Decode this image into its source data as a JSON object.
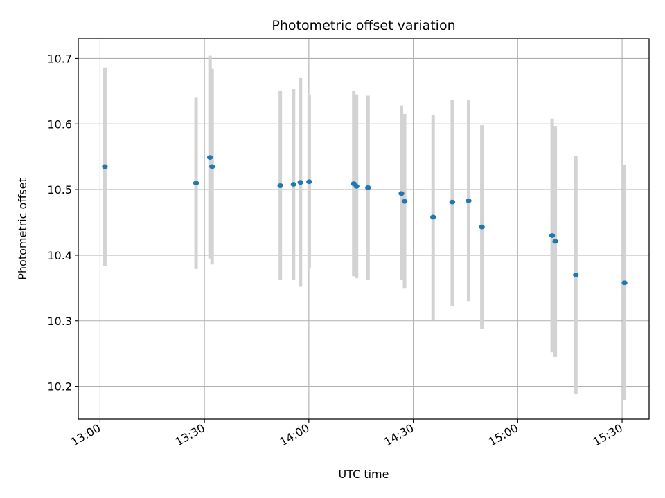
{
  "chart_data": {
    "type": "scatter",
    "title": "Photometric offset variation",
    "xlabel": "UTC time",
    "ylabel": "Photometric offset",
    "grid": true,
    "xlim": [
      "12:53:45",
      "15:37:45"
    ],
    "ylim": [
      10.15,
      10.73
    ],
    "x_ticks": [
      {
        "value": "13:00",
        "label": "13:00"
      },
      {
        "value": "13:30",
        "label": "13:30"
      },
      {
        "value": "14:00",
        "label": "14:00"
      },
      {
        "value": "14:30",
        "label": "14:30"
      },
      {
        "value": "15:00",
        "label": "15:00"
      },
      {
        "value": "15:30",
        "label": "15:30"
      }
    ],
    "y_ticks": [
      {
        "value": 10.2,
        "label": "10.2"
      },
      {
        "value": 10.3,
        "label": "10.3"
      },
      {
        "value": 10.4,
        "label": "10.4"
      },
      {
        "value": 10.5,
        "label": "10.5"
      },
      {
        "value": 10.6,
        "label": "10.6"
      },
      {
        "value": 10.7,
        "label": "10.7"
      }
    ],
    "point_color": "#1f77b4",
    "errorbar_color": "#d3d3d3",
    "points": [
      {
        "x": "13:01:24",
        "y": 10.535,
        "yerr_low": 10.383,
        "yerr_high": 10.686
      },
      {
        "x": "13:27:36",
        "y": 10.51,
        "yerr_low": 10.379,
        "yerr_high": 10.641
      },
      {
        "x": "13:31:36",
        "y": 10.549,
        "yerr_low": 10.395,
        "yerr_high": 10.704
      },
      {
        "x": "13:32:12",
        "y": 10.535,
        "yerr_low": 10.386,
        "yerr_high": 10.684
      },
      {
        "x": "13:51:48",
        "y": 10.506,
        "yerr_low": 10.362,
        "yerr_high": 10.651
      },
      {
        "x": "13:55:36",
        "y": 10.508,
        "yerr_low": 10.362,
        "yerr_high": 10.654
      },
      {
        "x": "13:57:36",
        "y": 10.511,
        "yerr_low": 10.352,
        "yerr_high": 10.67
      },
      {
        "x": "14:00:06",
        "y": 10.512,
        "yerr_low": 10.381,
        "yerr_high": 10.645
      },
      {
        "x": "14:12:54",
        "y": 10.509,
        "yerr_low": 10.368,
        "yerr_high": 10.65
      },
      {
        "x": "14:13:42",
        "y": 10.505,
        "yerr_low": 10.365,
        "yerr_high": 10.645
      },
      {
        "x": "14:17:00",
        "y": 10.503,
        "yerr_low": 10.362,
        "yerr_high": 10.643
      },
      {
        "x": "14:26:36",
        "y": 10.494,
        "yerr_low": 10.362,
        "yerr_high": 10.628
      },
      {
        "x": "14:27:30",
        "y": 10.482,
        "yerr_low": 10.349,
        "yerr_high": 10.615
      },
      {
        "x": "14:35:42",
        "y": 10.458,
        "yerr_low": 10.301,
        "yerr_high": 10.614
      },
      {
        "x": "14:41:12",
        "y": 10.481,
        "yerr_low": 10.323,
        "yerr_high": 10.637
      },
      {
        "x": "14:45:54",
        "y": 10.483,
        "yerr_low": 10.33,
        "yerr_high": 10.636
      },
      {
        "x": "14:49:42",
        "y": 10.443,
        "yerr_low": 10.288,
        "yerr_high": 10.598
      },
      {
        "x": "15:09:54",
        "y": 10.43,
        "yerr_low": 10.252,
        "yerr_high": 10.608
      },
      {
        "x": "15:10:48",
        "y": 10.421,
        "yerr_low": 10.245,
        "yerr_high": 10.597
      },
      {
        "x": "15:16:42",
        "y": 10.37,
        "yerr_low": 10.188,
        "yerr_high": 10.551
      },
      {
        "x": "15:30:42",
        "y": 10.358,
        "yerr_low": 10.179,
        "yerr_high": 10.537
      }
    ]
  }
}
